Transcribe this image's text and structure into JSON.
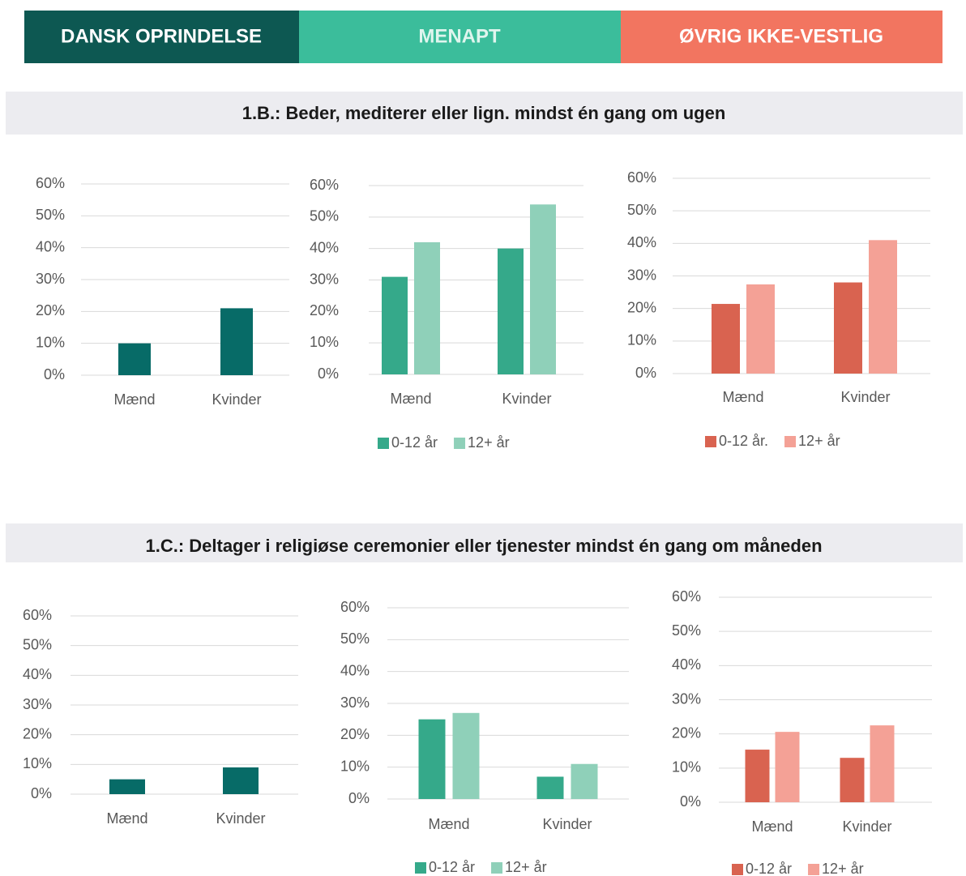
{
  "tabs": [
    "DANSK OPRINDELSE",
    "MENAPT",
    "ØVRIG IKKE-VESTLIG"
  ],
  "sections": [
    "1.B.: Beder, mediterer eller lign. mindst én gang om ugen",
    "1.C.: Deltager i religiøse ceremonier eller tjenester mindst én gang om måneden"
  ],
  "chart_data": [
    {
      "type": "bar",
      "categories": [
        "Mænd",
        "Kvinder"
      ],
      "values": [
        10,
        21
      ],
      "color": "#076b67",
      "ylim": [
        0,
        60
      ],
      "yticks": [
        {
          "value": 0,
          "label": "0%"
        },
        {
          "value": 10,
          "label": "10%"
        },
        {
          "value": 20,
          "label": "20%"
        },
        {
          "value": 30,
          "label": "30%"
        },
        {
          "value": 40,
          "label": "40%"
        },
        {
          "value": 50,
          "label": "50%"
        },
        {
          "value": 60,
          "label": "60%"
        }
      ],
      "grid": true
    },
    {
      "type": "bar",
      "categories": [
        "Mænd",
        "Kvinder"
      ],
      "series": [
        {
          "name": "0-12 år",
          "color": "#35a98a",
          "values": [
            31,
            40
          ]
        },
        {
          "name": "12+ år",
          "color": "#8fd0b9",
          "values": [
            42,
            54
          ]
        }
      ],
      "ylim": [
        0,
        60
      ],
      "yticks": [
        {
          "value": 0,
          "label": "0%"
        },
        {
          "value": 10,
          "label": "10%"
        },
        {
          "value": 20,
          "label": "20%"
        },
        {
          "value": 30,
          "label": "30%"
        },
        {
          "value": 40,
          "label": "40%"
        },
        {
          "value": 50,
          "label": "50%"
        },
        {
          "value": 60,
          "label": "60%"
        }
      ],
      "grid": true,
      "legend": "bottom"
    },
    {
      "type": "bar",
      "categories": [
        "Mænd",
        "Kvinder"
      ],
      "series": [
        {
          "name": "0-12 år.",
          "color": "#d96350",
          "values": [
            21.4,
            28
          ]
        },
        {
          "name": "12+ år",
          "color": "#f4a196",
          "values": [
            27.4,
            41
          ]
        }
      ],
      "ylim": [
        0,
        60
      ],
      "yticks": [
        {
          "value": 0,
          "label": "0%"
        },
        {
          "value": 10,
          "label": "10%"
        },
        {
          "value": 20,
          "label": "20%"
        },
        {
          "value": 30,
          "label": "30%"
        },
        {
          "value": 40,
          "label": "40%"
        },
        {
          "value": 50,
          "label": "50%"
        },
        {
          "value": 60,
          "label": "60%"
        }
      ],
      "grid": true,
      "legend": "bottom"
    },
    {
      "type": "bar",
      "categories": [
        "Mænd",
        "Kvinder"
      ],
      "values": [
        5,
        9
      ],
      "color": "#076b67",
      "ylim": [
        0,
        60
      ],
      "yticks": [
        {
          "value": 0,
          "label": "0%"
        },
        {
          "value": 10,
          "label": "10%"
        },
        {
          "value": 20,
          "label": "20%"
        },
        {
          "value": 30,
          "label": "30%"
        },
        {
          "value": 40,
          "label": "40%"
        },
        {
          "value": 50,
          "label": "50%"
        },
        {
          "value": 60,
          "label": "60%"
        }
      ],
      "grid": true
    },
    {
      "type": "bar",
      "categories": [
        "Mænd",
        "Kvinder"
      ],
      "series": [
        {
          "name": "0-12 år",
          "color": "#35a98a",
          "values": [
            25,
            7
          ]
        },
        {
          "name": "12+ år",
          "color": "#8fd0b9",
          "values": [
            27,
            11
          ]
        }
      ],
      "ylim": [
        0,
        60
      ],
      "yticks": [
        {
          "value": 0,
          "label": "0%"
        },
        {
          "value": 10,
          "label": "10%"
        },
        {
          "value": 20,
          "label": "20%"
        },
        {
          "value": 30,
          "label": "30%"
        },
        {
          "value": 40,
          "label": "40%"
        },
        {
          "value": 50,
          "label": "50%"
        },
        {
          "value": 60,
          "label": "60%"
        }
      ],
      "grid": true,
      "legend": "bottom"
    },
    {
      "type": "bar",
      "categories": [
        "Mænd",
        "Kvinder"
      ],
      "series": [
        {
          "name": "0-12 år",
          "color": "#d96350",
          "values": [
            15.4,
            13
          ]
        },
        {
          "name": "12+ år",
          "color": "#f4a196",
          "values": [
            20.6,
            22.5
          ]
        }
      ],
      "ylim": [
        0,
        60
      ],
      "yticks": [
        {
          "value": 0,
          "label": "0%"
        },
        {
          "value": 10,
          "label": "10%"
        },
        {
          "value": 20,
          "label": "20%"
        },
        {
          "value": 30,
          "label": "30%"
        },
        {
          "value": 40,
          "label": "40%"
        },
        {
          "value": 50,
          "label": "50%"
        },
        {
          "value": 60,
          "label": "60%"
        }
      ],
      "grid": true,
      "legend": "bottom"
    }
  ]
}
